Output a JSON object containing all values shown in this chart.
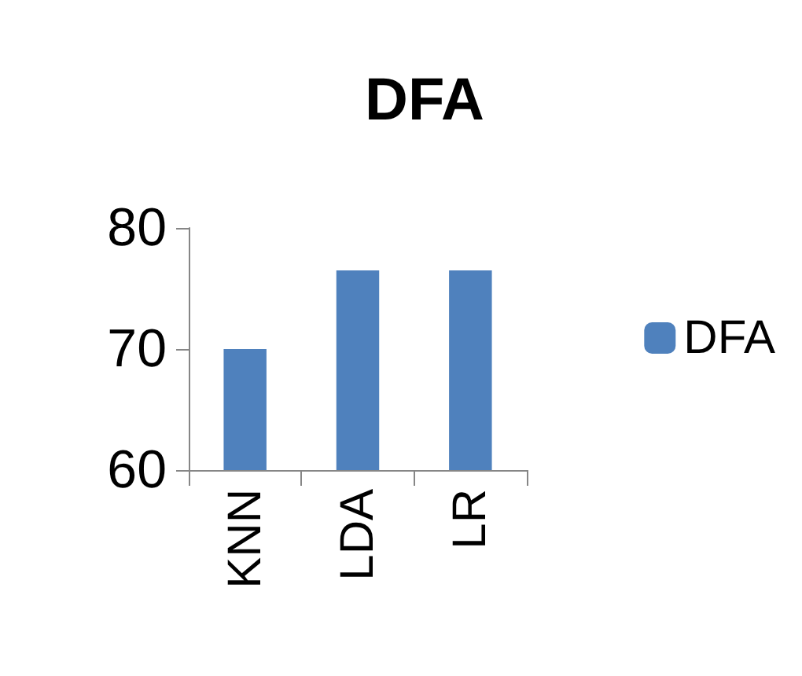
{
  "chart_data": {
    "type": "bar",
    "title": "DFA",
    "categories": [
      "KNN",
      "LDA",
      "LR"
    ],
    "series": [
      {
        "name": "DFA",
        "color": "#4f81bd",
        "values": [
          70,
          76.5,
          76.5
        ]
      }
    ],
    "ylim": [
      60,
      80
    ],
    "yticks": [
      60,
      70,
      80
    ],
    "grid": false,
    "legend": "right"
  }
}
